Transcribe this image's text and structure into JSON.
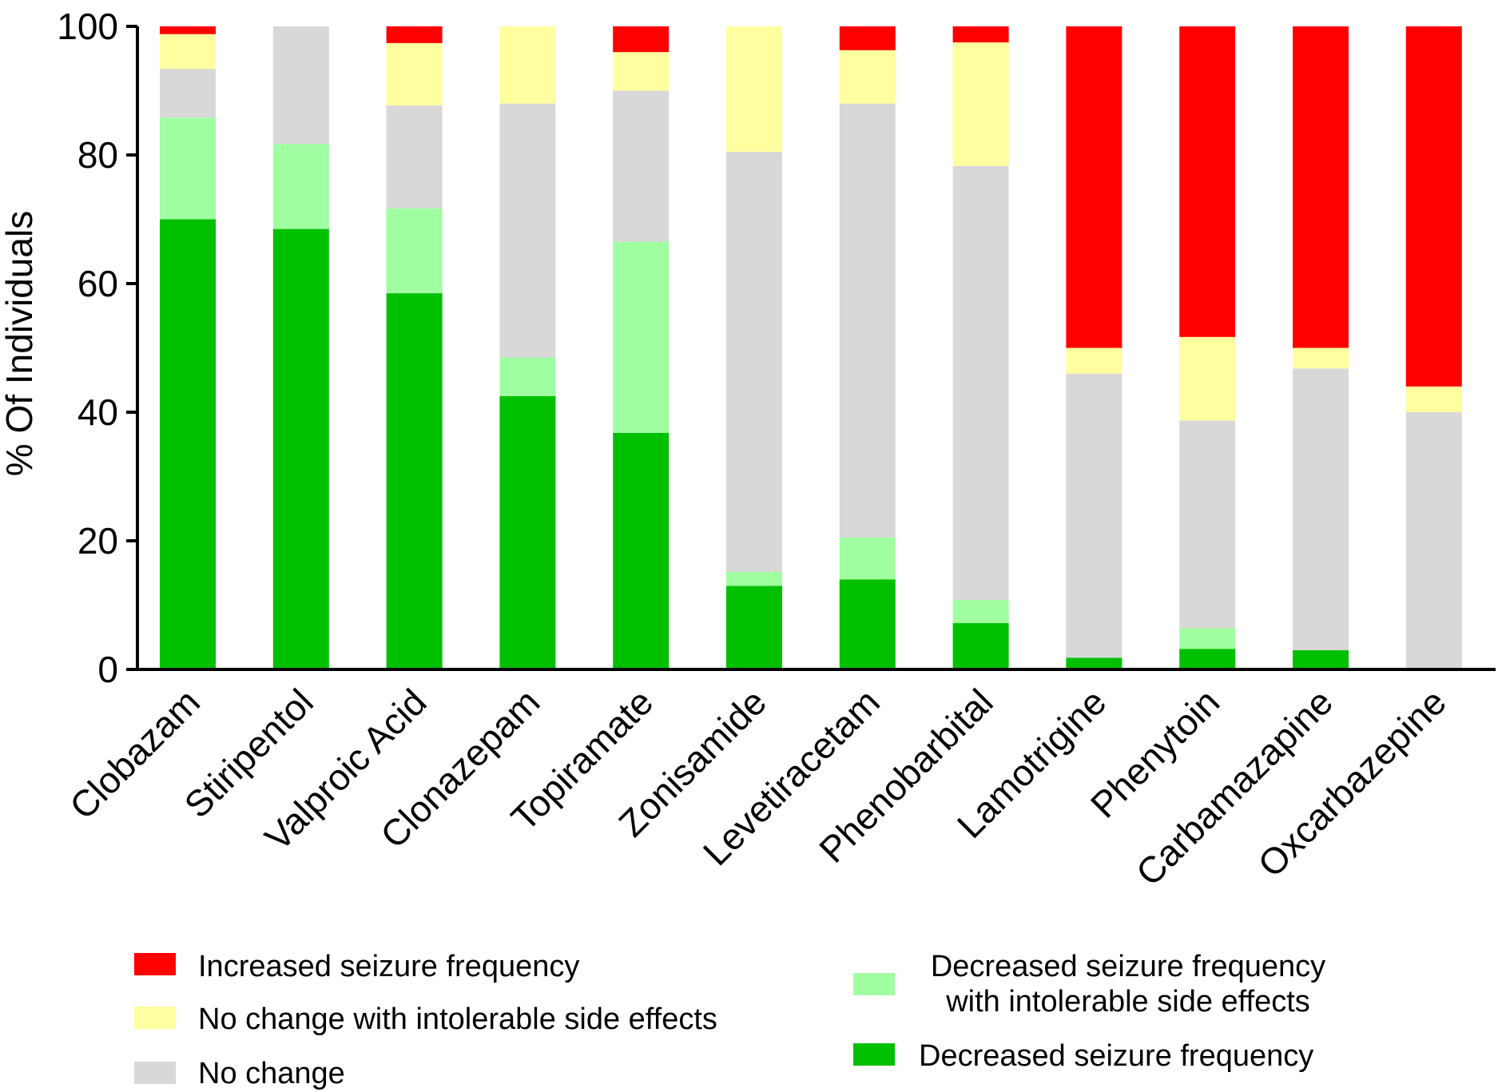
{
  "chart_data": {
    "type": "bar",
    "stacked": true,
    "ylabel": "% Of Individuals",
    "ylim": [
      0,
      100
    ],
    "yticks": [
      "0",
      "20",
      "40",
      "60",
      "80",
      "100"
    ],
    "grid": false,
    "legend_position": "bottom",
    "categories": [
      "Clobazam",
      "Stiripentol",
      "Valproic Acid",
      "Clonazepam",
      "Topiramate",
      "Zonisamide",
      "Levetiracetam",
      "Phenobarbital",
      "Lamotrigine",
      "Phenytoin",
      "Carbamazapine",
      "Oxcarbazepine"
    ],
    "series": [
      {
        "name": "Decreased seizure frequency",
        "color": "#00c000",
        "values": [
          70,
          68.5,
          58.5,
          42.5,
          36.8,
          13,
          14,
          7.2,
          1.8,
          3.2,
          3,
          0
        ]
      },
      {
        "name": "Decreased seizure frequency with intolerable side effects",
        "color": "#a0ffa0",
        "values": [
          15.8,
          13.2,
          13.2,
          6,
          29.7,
          2.2,
          6.5,
          3.6,
          0,
          3.2,
          0,
          0
        ]
      },
      {
        "name": "No change",
        "color": "#d8d8d8",
        "values": [
          7.6,
          18.3,
          16,
          39.5,
          23.5,
          65.3,
          67.5,
          67.5,
          44.2,
          32.3,
          43.8,
          40
        ]
      },
      {
        "name": "No change with intolerable side effects",
        "color": "#ffffa0",
        "values": [
          5.4,
          0,
          9.7,
          12,
          6,
          19.5,
          8.3,
          19.2,
          4,
          13,
          3.2,
          4
        ]
      },
      {
        "name": "Increased seizure frequency",
        "color": "#ff0000",
        "values": [
          1.2,
          0,
          2.6,
          0,
          4,
          0,
          3.7,
          2.5,
          50,
          48.3,
          50,
          56
        ]
      }
    ]
  },
  "legend": [
    {
      "label": "Increased seizure frequency",
      "color": "#ff0000"
    },
    {
      "label": "No change with intolerable side effects",
      "color": "#ffffa0"
    },
    {
      "label": "No change",
      "color": "#d8d8d8"
    },
    {
      "label_line1": "Decreased seizure frequency",
      "label_line2": "with intolerable side effects",
      "color": "#a0ffa0"
    },
    {
      "label": "Decreased seizure frequency",
      "color": "#00c000"
    }
  ]
}
